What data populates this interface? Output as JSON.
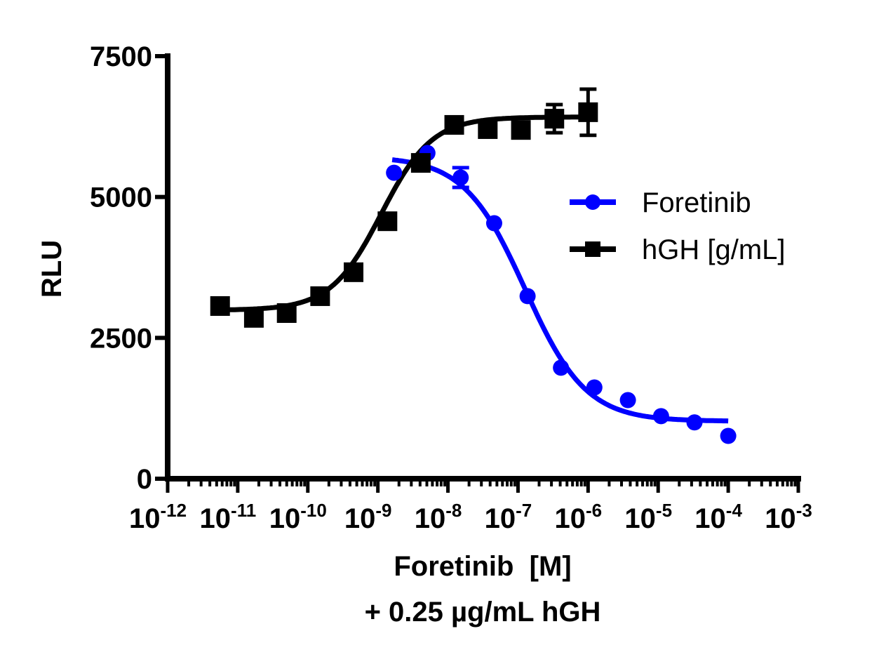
{
  "chart_data": {
    "type": "scatter",
    "title": "",
    "xlabel": "Foretinib  [M]",
    "xlabel_line2": "+ 0.25 µg/mL hGH",
    "ylabel": "RLU",
    "x_scale": "log",
    "xlim": [
      1e-12,
      0.001
    ],
    "ylim": [
      0,
      7500
    ],
    "x_ticks": [
      {
        "exp": -12,
        "label": "10",
        "sup": "-12"
      },
      {
        "exp": -11,
        "label": "10",
        "sup": "-11"
      },
      {
        "exp": -10,
        "label": "10",
        "sup": "-10"
      },
      {
        "exp": -9,
        "label": "10",
        "sup": "-9"
      },
      {
        "exp": -8,
        "label": "10",
        "sup": "-8"
      },
      {
        "exp": -7,
        "label": "10",
        "sup": "-7"
      },
      {
        "exp": -6,
        "label": "10",
        "sup": "-6"
      },
      {
        "exp": -5,
        "label": "10",
        "sup": "-5"
      },
      {
        "exp": -4,
        "label": "10",
        "sup": "-4"
      },
      {
        "exp": -3,
        "label": "10",
        "sup": "-3"
      }
    ],
    "y_ticks": [
      0,
      2500,
      5000,
      7500
    ],
    "grid": false,
    "legend_placement": "right",
    "series": [
      {
        "name": "Foretinib",
        "color": "#0000ff",
        "marker": "circle",
        "x": [
          1.7e-09,
          5.1e-09,
          1.52e-08,
          4.57e-08,
          1.37e-07,
          4.1e-07,
          1.23e-06,
          3.7e-06,
          1.1e-05,
          3.3e-05,
          0.0001
        ],
        "y": [
          5430,
          5780,
          5345,
          4535,
          3240,
          1970,
          1620,
          1395,
          1110,
          1000,
          760
        ],
        "yerr": [
          0,
          0,
          175,
          0,
          0,
          0,
          0,
          0,
          0,
          0,
          0
        ],
        "fit": {
          "model": "4PL",
          "bottom": 1020,
          "top": 5720,
          "logEC50": -6.9,
          "hill": -1.0,
          "xrange": [
            1.6e-09,
            0.0001
          ]
        }
      },
      {
        "name": "hGH [g/mL]",
        "color": "#000000",
        "marker": "square",
        "x": [
          5.6e-12,
          1.7e-11,
          5e-11,
          1.5e-10,
          4.5e-10,
          1.37e-09,
          4.1e-09,
          1.23e-08,
          3.7e-08,
          1.1e-07,
          3.3e-07,
          1e-06
        ],
        "y": [
          3065,
          2855,
          2940,
          3240,
          3665,
          4570,
          5605,
          6280,
          6205,
          6190,
          6390,
          6505
        ],
        "yerr": [
          80,
          60,
          50,
          60,
          90,
          80,
          70,
          90,
          70,
          130,
          250,
          410
        ],
        "fit": {
          "model": "4PL",
          "bottom": 2990,
          "top": 6420,
          "logEC50": -8.95,
          "hill": 1.2,
          "xrange": [
            5.6e-12,
            1e-06
          ]
        }
      }
    ]
  }
}
